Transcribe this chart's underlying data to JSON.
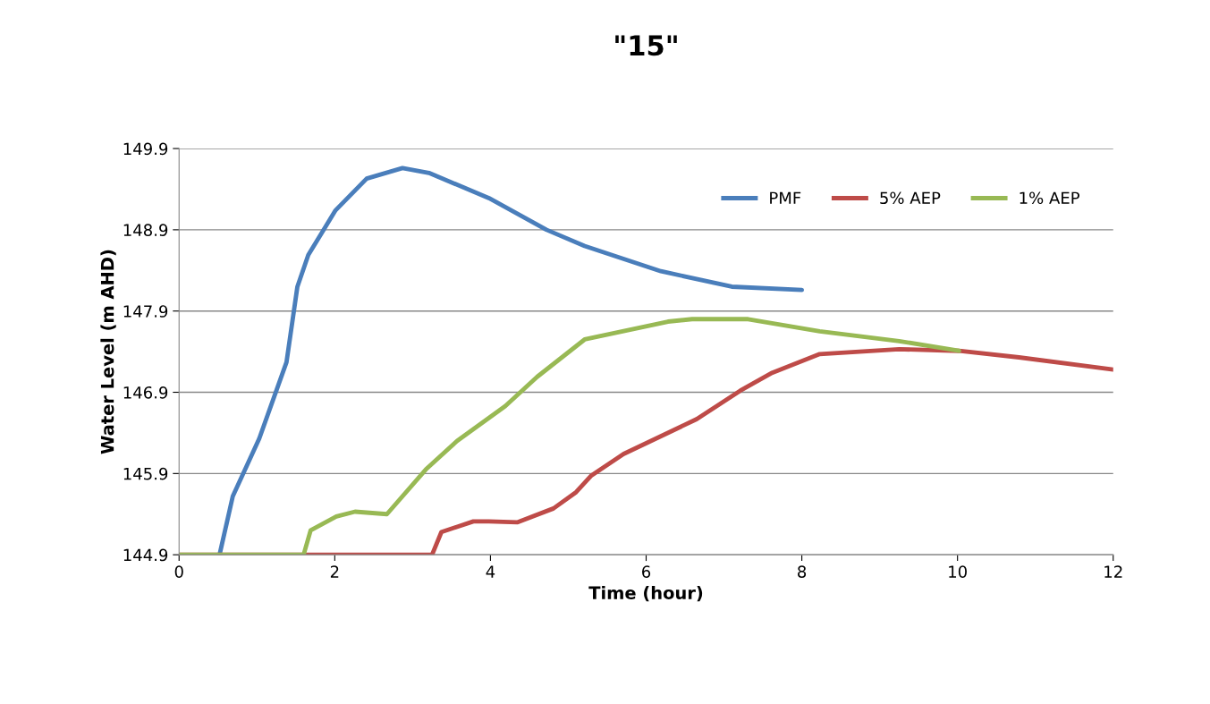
{
  "chart_data": {
    "type": "line",
    "title": "\"15\"",
    "xlabel": "Time (hour)",
    "ylabel": "Water Level (m AHD)",
    "xlim": [
      0,
      12
    ],
    "xticks": [
      0,
      2,
      4,
      6,
      8,
      10,
      12
    ],
    "ylim": [
      144.9,
      149.9
    ],
    "yticks": [
      144.9,
      145.9,
      146.9,
      147.9,
      148.9,
      149.9
    ],
    "grid": "y",
    "legend": "top right",
    "line_style": "solid",
    "marker": "none",
    "series": [
      {
        "name": "PMF",
        "color": "#4a7ebb",
        "x": [
          0.52,
          0.69,
          1.03,
          1.38,
          1.52,
          1.66,
          2.01,
          2.41,
          2.87,
          3.21,
          3.98,
          4.72,
          5.21,
          6.19,
          7.1,
          8.0
        ],
        "values": [
          144.9,
          145.62,
          146.33,
          147.27,
          148.2,
          148.59,
          149.14,
          149.53,
          149.66,
          149.6,
          149.29,
          148.9,
          148.7,
          148.39,
          148.2,
          148.16
        ]
      },
      {
        "name": "5% AEP",
        "color": "#be4b48",
        "x": [
          0,
          3.25,
          3.37,
          3.78,
          3.98,
          4.35,
          4.81,
          5.1,
          5.29,
          5.71,
          6.65,
          7.21,
          7.62,
          8.23,
          9.25,
          10.02,
          10.79,
          12
        ],
        "values": [
          144.9,
          144.9,
          145.18,
          145.31,
          145.31,
          145.3,
          145.47,
          145.67,
          145.87,
          146.14,
          146.57,
          146.92,
          147.14,
          147.37,
          147.43,
          147.41,
          147.33,
          147.18
        ]
      },
      {
        "name": "1% AEP",
        "color": "#98b954",
        "x": [
          0,
          1.6,
          1.69,
          2.02,
          2.26,
          2.67,
          3.17,
          3.57,
          4.19,
          4.6,
          5.21,
          6.28,
          6.59,
          7.31,
          8.23,
          9.25,
          10.02
        ],
        "values": [
          144.9,
          144.9,
          145.2,
          145.37,
          145.43,
          145.4,
          145.95,
          146.3,
          146.73,
          147.09,
          147.55,
          147.77,
          147.8,
          147.8,
          147.65,
          147.53,
          147.41
        ]
      }
    ]
  }
}
